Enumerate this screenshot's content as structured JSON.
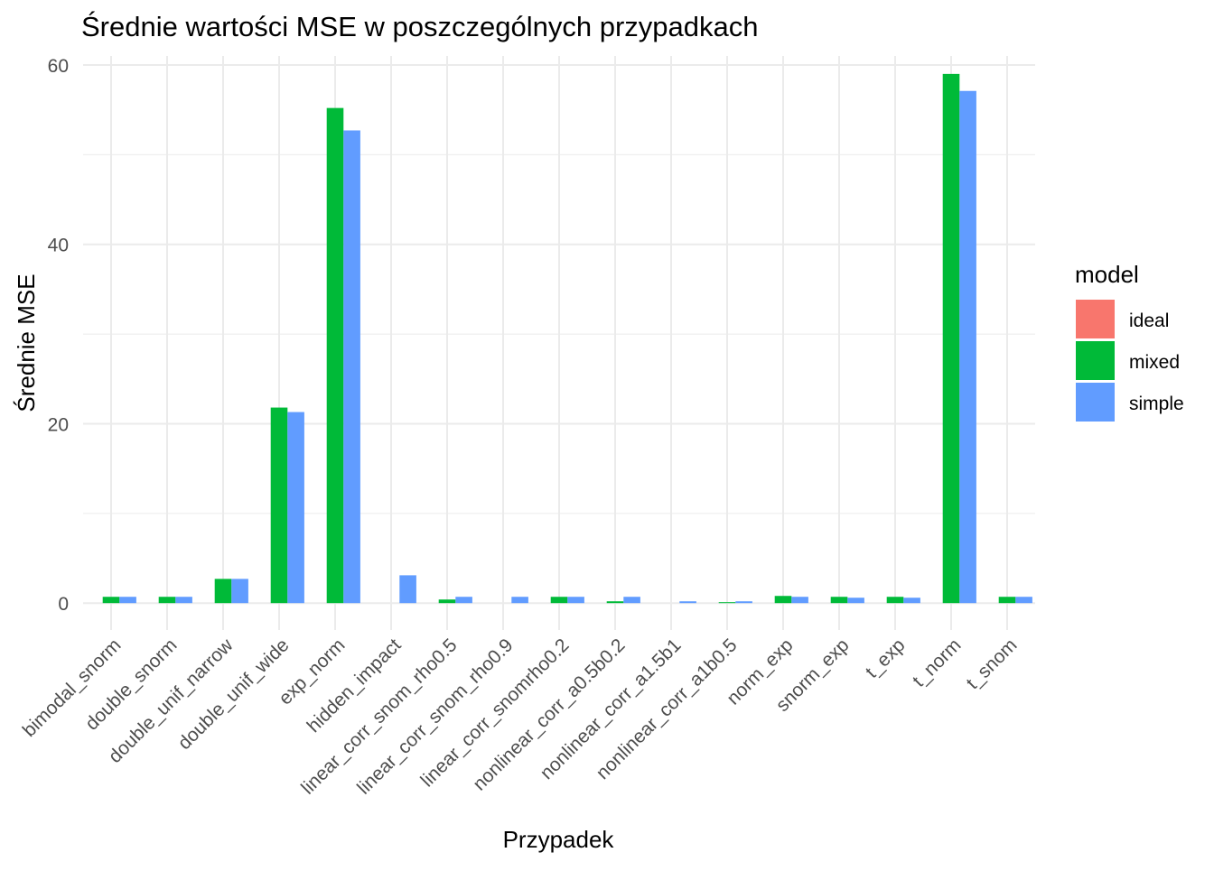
{
  "chart_data": {
    "type": "bar",
    "title": "Średnie wartości MSE w poszczególnych przypadkach",
    "xlabel": "Przypadek",
    "ylabel": "Średnie MSE",
    "ylim": [
      -3,
      61
    ],
    "yticks": [
      0,
      20,
      40,
      60
    ],
    "grid": true,
    "legend": {
      "title": "model",
      "placement": "right"
    },
    "categories": [
      "bimodal_snorm",
      "double_snorm",
      "double_unif_narrow",
      "double_unif_wide",
      "exp_norm",
      "hidden_impact",
      "linear_corr_snom_rho0.5",
      "linear_corr_snom_rho0.9",
      "linear_corr_snomrho0.2",
      "nonlinear_corr_a0.5b0.2",
      "nonlinear_corr_a1.5b1",
      "nonlinear_corr_a1b0.5",
      "norm_exp",
      "snorm_exp",
      "t_exp",
      "t_norm",
      "t_snom"
    ],
    "series": [
      {
        "name": "ideal",
        "color": "#F8766D",
        "values": [
          0,
          0,
          0,
          0,
          0,
          0,
          0,
          0,
          0,
          0,
          0,
          0,
          0,
          0,
          0,
          0,
          0
        ]
      },
      {
        "name": "mixed",
        "color": "#00BA38",
        "values": [
          0.7,
          0.7,
          2.7,
          21.8,
          55.2,
          0,
          0.4,
          0,
          0.7,
          0.2,
          0,
          0.1,
          0.8,
          0.7,
          0.7,
          59.0,
          0.7
        ]
      },
      {
        "name": "simple",
        "color": "#619CFF",
        "values": [
          0.7,
          0.7,
          2.7,
          21.3,
          52.7,
          3.1,
          0.7,
          0.7,
          0.7,
          0.7,
          0.2,
          0.2,
          0.7,
          0.6,
          0.6,
          57.1,
          0.7
        ]
      }
    ]
  }
}
